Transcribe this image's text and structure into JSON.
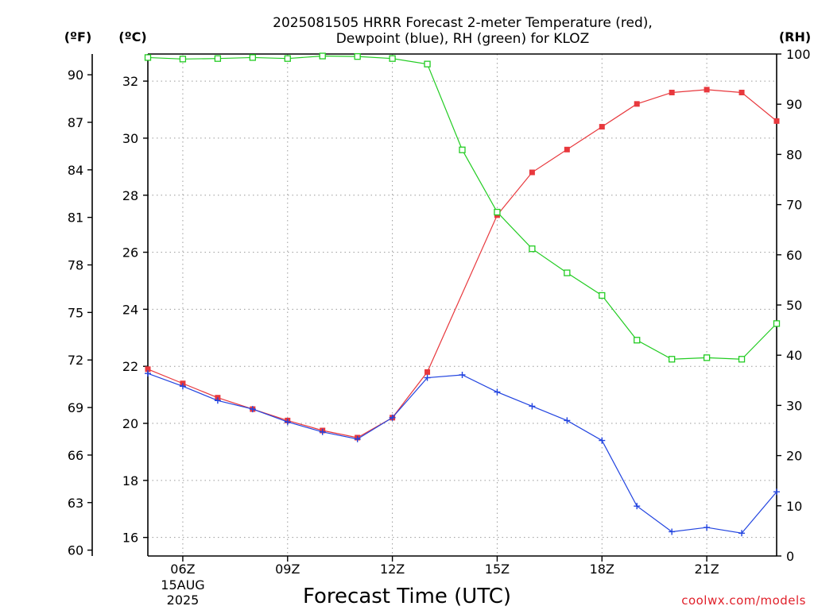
{
  "chart_data": {
    "type": "line",
    "title": "2025081505 HRRR Forecast 2-meter Temperature (red),",
    "subtitle": "Dewpoint (blue), RH (green) for KLOZ",
    "xlabel": "Forecast Time (UTC)",
    "y_left_outer_label": "(ºF)",
    "y_left_inner_label": "(ºC)",
    "y_right_label": "(RH)",
    "x_tick_labels": [
      "06Z",
      "09Z",
      "12Z",
      "15Z",
      "18Z",
      "21Z"
    ],
    "x_date_line1": "15AUG",
    "x_date_line2": "2025",
    "x_ticks_hour": [
      6,
      9,
      12,
      15,
      18,
      21
    ],
    "xlim_hour": [
      5,
      23
    ],
    "celsius_ticks": [
      "32",
      "30",
      "28",
      "26",
      "24",
      "22",
      "20",
      "18",
      "16"
    ],
    "celsius_values": [
      32,
      30,
      28,
      26,
      24,
      22,
      20,
      18,
      16
    ],
    "fahrenheit_ticks": [
      "90",
      "87",
      "84",
      "81",
      "78",
      "75",
      "72",
      "69",
      "66",
      "63",
      "60"
    ],
    "fahrenheit_values": [
      90,
      87,
      84,
      81,
      78,
      75,
      72,
      69,
      66,
      63,
      60
    ],
    "rh_ticks": [
      "100",
      "90",
      "80",
      "70",
      "60",
      "50",
      "40",
      "30",
      "20",
      "10",
      "0"
    ],
    "rh_values": [
      100,
      90,
      80,
      70,
      60,
      50,
      40,
      30,
      20,
      10,
      0
    ],
    "ylim_celsius": [
      15.35,
      32.95
    ],
    "ylim_rh": [
      0,
      100
    ],
    "grid": true,
    "x_hours": [
      5,
      6,
      7,
      8,
      9,
      10,
      11,
      12,
      13,
      14,
      15,
      16,
      17,
      18,
      19,
      20,
      21,
      22,
      23
    ],
    "series": [
      {
        "name": "Temperature",
        "axis": "celsius",
        "color": "#e8383d",
        "marker": "filled-square",
        "values": [
          21.9,
          21.4,
          20.9,
          20.5,
          20.1,
          19.75,
          19.5,
          20.2,
          21.8,
          null,
          27.3,
          28.8,
          29.6,
          30.4,
          31.2,
          31.6,
          31.7,
          31.6,
          30.6
        ]
      },
      {
        "name": "Dewpoint",
        "axis": "celsius",
        "color": "#2244e0",
        "marker": "plus",
        "values": [
          21.75,
          21.3,
          20.8,
          20.5,
          20.05,
          19.7,
          19.45,
          20.2,
          21.6,
          21.7,
          21.1,
          20.6,
          20.1,
          19.4,
          17.1,
          16.2,
          16.35,
          16.15,
          17.6
        ]
      },
      {
        "name": "RH",
        "axis": "rh",
        "color": "#22cc22",
        "marker": "open-square",
        "values": [
          99.3,
          99.0,
          99.1,
          99.3,
          99.1,
          99.6,
          99.5,
          99.1,
          98.0,
          80.9,
          68.5,
          61.2,
          56.4,
          51.9,
          43.0,
          39.2,
          39.5,
          39.2,
          46.3
        ]
      }
    ],
    "credit": "coolwx.com/models"
  }
}
